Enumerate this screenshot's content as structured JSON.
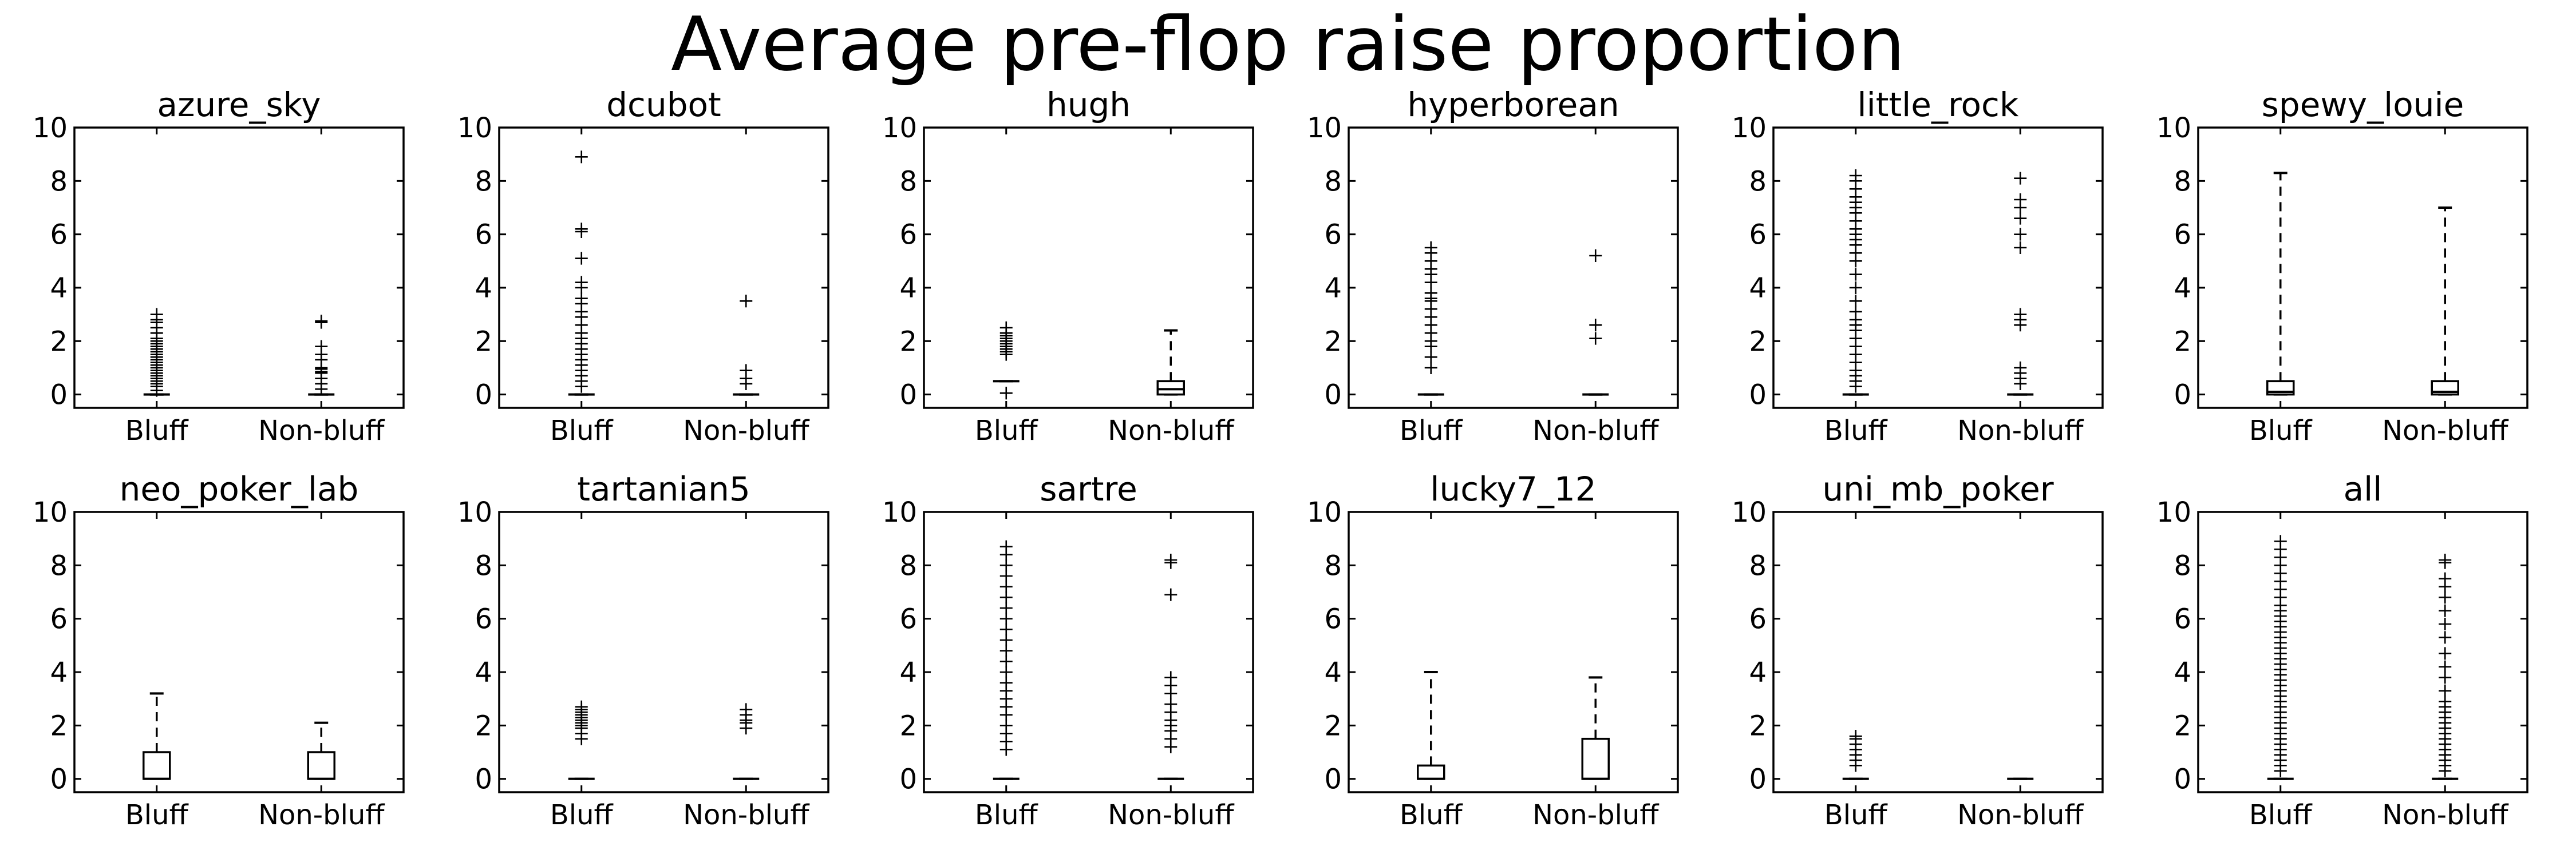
{
  "chart_data": {
    "type": "box",
    "title": "Average pre-flop raise proportion",
    "categories": [
      "Bluff",
      "Non-bluff"
    ],
    "ylim": [
      -0.5,
      10
    ],
    "yticks": [
      0,
      2,
      4,
      6,
      8,
      10
    ],
    "panels": [
      {
        "title": "azure_sky",
        "boxes": [
          {
            "q1": 0,
            "median": 0,
            "q3": 0,
            "whisker_low": 0,
            "whisker_high": 0,
            "outliers": [
              0.15,
              0.3,
              0.4,
              0.5,
              0.6,
              0.7,
              0.8,
              0.9,
              1.0,
              1.1,
              1.2,
              1.3,
              1.4,
              1.5,
              1.6,
              1.7,
              1.8,
              1.9,
              2.0,
              2.1,
              2.3,
              2.5,
              2.7,
              2.8,
              3.0
            ]
          },
          {
            "q1": 0,
            "median": 0,
            "q3": 0,
            "whisker_low": 0,
            "whisker_high": 0,
            "outliers": [
              0.2,
              0.4,
              0.6,
              0.8,
              0.85,
              0.95,
              1.0,
              1.3,
              1.5,
              1.8,
              2.7,
              2.75
            ]
          }
        ]
      },
      {
        "title": "dcubot",
        "boxes": [
          {
            "q1": 0,
            "median": 0,
            "q3": 0,
            "whisker_low": 0,
            "whisker_high": 0,
            "outliers": [
              0.3,
              0.5,
              0.7,
              0.9,
              1.1,
              1.3,
              1.5,
              1.7,
              1.9,
              2.1,
              2.3,
              2.6,
              2.9,
              3.1,
              3.4,
              3.6,
              4.0,
              4.2,
              5.1,
              6.1,
              6.2,
              8.9
            ]
          },
          {
            "q1": 0,
            "median": 0,
            "q3": 0,
            "whisker_low": 0,
            "whisker_high": 0,
            "outliers": [
              0.4,
              0.6,
              0.9,
              3.5
            ]
          }
        ]
      },
      {
        "title": "hugh",
        "boxes": [
          {
            "q1": 0.5,
            "median": 0.5,
            "q3": 0.5,
            "whisker_low": 0.5,
            "whisker_high": 0.5,
            "outliers": [
              0.05,
              1.5,
              1.6,
              1.7,
              1.8,
              1.9,
              2.0,
              2.1,
              2.2,
              2.3,
              2.5
            ]
          },
          {
            "q1": 0,
            "median": 0.2,
            "q3": 0.5,
            "whisker_low": 0,
            "whisker_high": 2.4,
            "outliers": []
          }
        ]
      },
      {
        "title": "hyperborean",
        "boxes": [
          {
            "q1": 0,
            "median": 0,
            "q3": 0,
            "whisker_low": 0,
            "whisker_high": 0,
            "outliers": [
              1.0,
              1.4,
              1.8,
              2.0,
              2.3,
              2.6,
              2.9,
              3.2,
              3.5,
              3.6,
              3.8,
              4.2,
              4.5,
              4.7,
              5.0,
              5.3,
              5.5
            ]
          },
          {
            "q1": 0,
            "median": 0,
            "q3": 0,
            "whisker_low": 0,
            "whisker_high": 0,
            "outliers": [
              2.1,
              2.6,
              5.2
            ]
          }
        ]
      },
      {
        "title": "little_rock",
        "boxes": [
          {
            "q1": 0,
            "median": 0,
            "q3": 0,
            "whisker_low": 0,
            "whisker_high": 0,
            "outliers": [
              0.3,
              0.5,
              0.7,
              0.9,
              1.2,
              1.5,
              1.8,
              2.1,
              2.4,
              2.6,
              2.8,
              3.1,
              3.5,
              4.0,
              4.5,
              5.0,
              5.3,
              5.6,
              5.8,
              6.0,
              6.2,
              6.5,
              6.8,
              7.0,
              7.2,
              7.4,
              7.7,
              8.0,
              8.2
            ]
          },
          {
            "q1": 0,
            "median": 0,
            "q3": 0,
            "whisker_low": 0,
            "whisker_high": 0,
            "outliers": [
              0.4,
              0.6,
              0.8,
              1.0,
              2.6,
              2.8,
              3.0,
              5.5,
              6.0,
              6.6,
              7.0,
              7.3,
              8.1
            ]
          }
        ]
      },
      {
        "title": "spewy_louie",
        "boxes": [
          {
            "q1": 0,
            "median": 0.1,
            "q3": 0.5,
            "whisker_low": 0,
            "whisker_high": 8.3,
            "outliers": []
          },
          {
            "q1": 0,
            "median": 0.1,
            "q3": 0.5,
            "whisker_low": 0,
            "whisker_high": 7.0,
            "outliers": []
          }
        ]
      },
      {
        "title": "neo_poker_lab",
        "boxes": [
          {
            "q1": 0,
            "median": 0,
            "q3": 1.0,
            "whisker_low": 0,
            "whisker_high": 3.2,
            "outliers": []
          },
          {
            "q1": 0,
            "median": 0,
            "q3": 1.0,
            "whisker_low": 0,
            "whisker_high": 2.1,
            "outliers": []
          }
        ]
      },
      {
        "title": "tartanian5",
        "boxes": [
          {
            "q1": 0,
            "median": 0,
            "q3": 0,
            "whisker_low": 0,
            "whisker_high": 0,
            "outliers": [
              1.5,
              1.7,
              1.9,
              2.0,
              2.1,
              2.2,
              2.3,
              2.4,
              2.5,
              2.6,
              2.7
            ]
          },
          {
            "q1": 0,
            "median": 0,
            "q3": 0,
            "whisker_low": 0,
            "whisker_high": 0,
            "outliers": [
              1.9,
              2.1,
              2.2,
              2.4,
              2.6
            ]
          }
        ]
      },
      {
        "title": "sartre",
        "boxes": [
          {
            "q1": 0,
            "median": 0,
            "q3": 0,
            "whisker_low": 0,
            "whisker_high": 0,
            "outliers": [
              1.1,
              1.4,
              1.7,
              2.0,
              2.4,
              2.7,
              3.0,
              3.3,
              3.6,
              4.0,
              4.4,
              4.8,
              5.2,
              5.6,
              6.0,
              6.4,
              6.8,
              7.2,
              7.6,
              8.0,
              8.4,
              8.7
            ]
          },
          {
            "q1": 0,
            "median": 0,
            "q3": 0,
            "whisker_low": 0,
            "whisker_high": 0,
            "outliers": [
              1.2,
              1.5,
              1.8,
              2.0,
              2.2,
              2.5,
              2.8,
              3.2,
              3.5,
              3.8,
              6.9,
              8.1,
              8.2
            ]
          }
        ]
      },
      {
        "title": "lucky7_12",
        "boxes": [
          {
            "q1": 0,
            "median": 0,
            "q3": 0.5,
            "whisker_low": 0,
            "whisker_high": 4.0,
            "outliers": []
          },
          {
            "q1": 0,
            "median": 0,
            "q3": 1.5,
            "whisker_low": 0,
            "whisker_high": 3.8,
            "outliers": []
          }
        ]
      },
      {
        "title": "uni_mb_poker",
        "boxes": [
          {
            "q1": 0,
            "median": 0,
            "q3": 0,
            "whisker_low": 0,
            "whisker_high": 0,
            "outliers": [
              0.5,
              0.7,
              0.9,
              1.1,
              1.3,
              1.5,
              1.6
            ]
          },
          {
            "q1": 0,
            "median": 0,
            "q3": 0,
            "whisker_low": 0,
            "whisker_high": 0,
            "outliers": []
          }
        ]
      },
      {
        "title": "all",
        "boxes": [
          {
            "q1": 0,
            "median": 0,
            "q3": 0,
            "whisker_low": 0,
            "whisker_high": 0,
            "outliers": [
              0.3,
              0.5,
              0.7,
              0.9,
              1.1,
              1.3,
              1.5,
              1.7,
              1.9,
              2.1,
              2.3,
              2.5,
              2.7,
              2.9,
              3.1,
              3.3,
              3.5,
              3.7,
              3.9,
              4.1,
              4.3,
              4.5,
              4.7,
              4.9,
              5.1,
              5.3,
              5.5,
              5.7,
              5.9,
              6.1,
              6.3,
              6.5,
              6.8,
              7.1,
              7.4,
              7.7,
              8.0,
              8.3,
              8.6,
              8.9
            ]
          },
          {
            "q1": 0,
            "median": 0,
            "q3": 0,
            "whisker_low": 0,
            "whisker_high": 0,
            "outliers": [
              0.3,
              0.5,
              0.7,
              0.9,
              1.1,
              1.3,
              1.5,
              1.7,
              1.9,
              2.1,
              2.3,
              2.5,
              2.7,
              2.9,
              3.3,
              3.8,
              4.2,
              4.7,
              5.3,
              5.8,
              6.3,
              6.8,
              7.2,
              7.5,
              8.1,
              8.2
            ]
          }
        ]
      }
    ]
  }
}
